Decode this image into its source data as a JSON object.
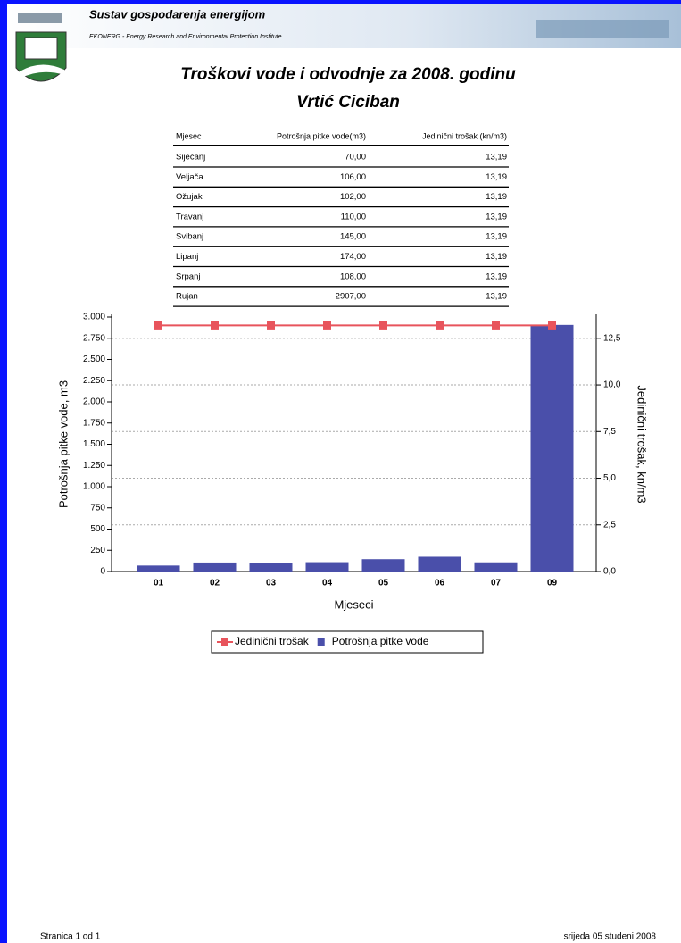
{
  "header": {
    "title": "Sustav gospodarenja energijom",
    "subtitle": "EKONERG - Energy Research and Environmental Protection Institute"
  },
  "title": [
    "Troškovi vode i odvodnje za 2008. godinu",
    "Vrtić Ciciban"
  ],
  "table": {
    "columns": [
      "Mjesec",
      "Potrošnja pitke vode(m3)",
      "Jedinični trošak (kn/m3)"
    ],
    "rows": [
      [
        "Siječanj",
        "70,00",
        "13,19"
      ],
      [
        "Veljača",
        "106,00",
        "13,19"
      ],
      [
        "Ožujak",
        "102,00",
        "13,19"
      ],
      [
        "Travanj",
        "110,00",
        "13,19"
      ],
      [
        "Svibanj",
        "145,00",
        "13,19"
      ],
      [
        "Lipanj",
        "174,00",
        "13,19"
      ],
      [
        "Srpanj",
        "108,00",
        "13,19"
      ],
      [
        "Rujan",
        "2907,00",
        "13,19"
      ]
    ]
  },
  "chart_data": {
    "type": "bar-line",
    "x_label": "Mjeseci",
    "y_label": "Potrošnja pitke vode, m3",
    "y2_label": "Jedinični trošak, kn/m3",
    "categories": [
      "01",
      "02",
      "03",
      "04",
      "05",
      "06",
      "07",
      "09"
    ],
    "series": [
      {
        "name": "Jedinični trošak",
        "type": "line",
        "axis": "y2",
        "color": "#e8545c",
        "values": [
          13.19,
          13.19,
          13.19,
          13.19,
          13.19,
          13.19,
          13.19,
          13.19
        ]
      },
      {
        "name": "Potrošnja pitke vode",
        "type": "bar",
        "color": "#4a4faa",
        "values": [
          70,
          106,
          102,
          110,
          145,
          174,
          108,
          2907
        ]
      }
    ],
    "ylim": [
      0,
      3000
    ],
    "yticks": [
      0,
      250,
      500,
      750,
      {
        "value": 1000,
        "label": "1.000"
      },
      {
        "value": 1250,
        "label": "1.250"
      },
      {
        "value": 1500,
        "label": "1.500"
      },
      {
        "value": 1750,
        "label": "1.750"
      },
      {
        "value": 2000,
        "label": "2.000"
      },
      {
        "value": 2250,
        "label": "2.250"
      },
      {
        "value": 2500,
        "label": "2.500"
      },
      {
        "value": 2750,
        "label": "2.750"
      },
      {
        "value": 3000,
        "label": "3.000"
      }
    ],
    "y2lim": [
      0,
      13.64
    ],
    "y2ticks": [
      {
        "value": 0,
        "label": "0,0"
      },
      {
        "value": 2.5,
        "label": "2,5"
      },
      {
        "value": 5,
        "label": "5,0"
      },
      {
        "value": 7.5,
        "label": "7,5"
      },
      {
        "value": 10,
        "label": "10,0"
      },
      {
        "value": 12.5,
        "label": "12,5"
      }
    ],
    "grid": true,
    "legend": "bottom"
  },
  "footer": {
    "left": "Stranica 1 od 1",
    "right": "srijeda 05 studeni 2008"
  }
}
